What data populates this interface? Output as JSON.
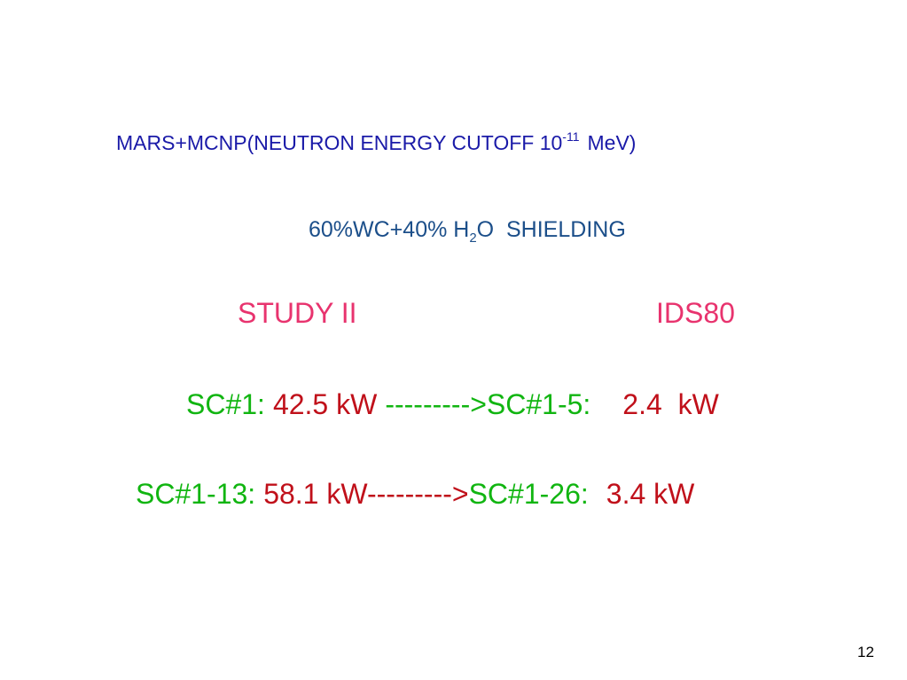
{
  "title": {
    "main": "MARS+MCNP(NEUTRON ENERGY CUTOFF 10",
    "exponent": "-11",
    "unit": "MeV)"
  },
  "subtitle": {
    "before": "60%WC+40% H",
    "subscript": "2",
    "after": "O  SHIELDING"
  },
  "columns": [
    "STUDY II",
    "IDS80"
  ],
  "rows": [
    {
      "from_label": "SC#1:",
      "from_value": "42.5 kW",
      "arrow": "--------->",
      "to_label": "SC#1-5:",
      "to_value": "2.4  kW"
    },
    {
      "from_label": "SC#1-13:",
      "from_value": "58.1 kW",
      "arrow": "--------->",
      "to_label": "SC#1-26:",
      "to_value": "3.4 kW"
    }
  ],
  "page_number": "12"
}
